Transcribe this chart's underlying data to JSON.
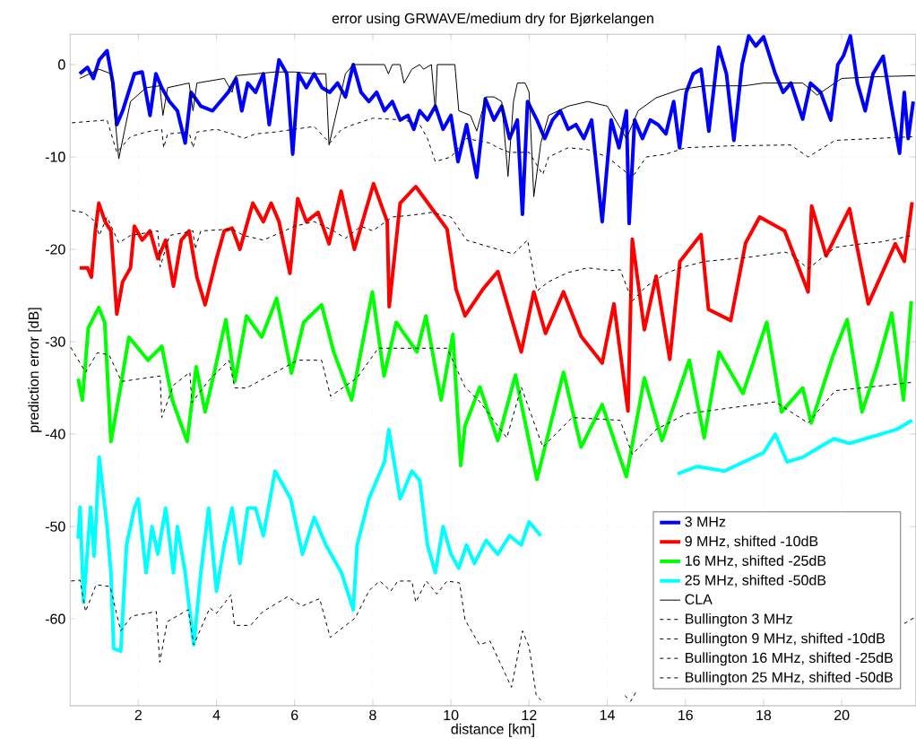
{
  "chart_data": {
    "type": "line",
    "title": "error using GRWAVE/medium dry for Bjørkelangen",
    "xlabel": "distance [km]",
    "ylabel": "prediction error [dB]",
    "xlim": [
      0.25,
      21.9
    ],
    "ylim": [
      -69.4,
      3.3
    ],
    "xticks": [
      2,
      4,
      6,
      8,
      10,
      12,
      14,
      16,
      18,
      20
    ],
    "yticks": [
      -60,
      -50,
      -40,
      -30,
      -20,
      -10,
      0
    ],
    "grid": true,
    "legend": "bottom right",
    "series": [
      {
        "name": "3 MHz",
        "color": "#0000ff",
        "line_style": "solid",
        "x": [
          0.5,
          0.7,
          0.85,
          1.0,
          1.2,
          1.35,
          1.45,
          1.6,
          1.75,
          1.9,
          2.1,
          2.3,
          2.45,
          2.6,
          2.8,
          3.0,
          3.2,
          3.35,
          3.6,
          3.9,
          4.1,
          4.3,
          4.5,
          4.65,
          4.8,
          5.0,
          5.2,
          5.35,
          5.6,
          5.8,
          5.95,
          6.1,
          6.3,
          6.5,
          6.7,
          6.9,
          7.1,
          7.3,
          7.5,
          7.7,
          7.9,
          8.1,
          8.3,
          8.5,
          8.7,
          8.9,
          9.05,
          9.2,
          9.4,
          9.6,
          9.8,
          10.0,
          10.18,
          10.4,
          10.66,
          10.88,
          11.1,
          11.3,
          11.5,
          11.7,
          11.83,
          11.96,
          12.2,
          12.4,
          12.6,
          12.8,
          13.0,
          13.2,
          13.4,
          13.6,
          13.87,
          14.1,
          14.3,
          14.49,
          14.56,
          14.7,
          14.9,
          15.1,
          15.3,
          15.5,
          15.7,
          15.85,
          16.02,
          16.2,
          16.4,
          16.6,
          16.85,
          17.05,
          17.24,
          17.45,
          17.62,
          17.8,
          18.0,
          18.15,
          18.3,
          18.5,
          18.7,
          19.0,
          19.2,
          19.46,
          19.72,
          19.9,
          20.05,
          20.22,
          20.4,
          20.6,
          20.8,
          21.06,
          21.25,
          21.48,
          21.6,
          21.7,
          21.83
        ],
        "values": [
          -1,
          -0.3,
          -1.5,
          0.5,
          1.5,
          -2,
          -6.5,
          -5,
          -3,
          -1,
          -0.8,
          -5.5,
          -1,
          -2.5,
          -4,
          -5,
          -8.5,
          -3,
          -4.5,
          -5,
          -4,
          -3,
          -1.5,
          -5,
          -2,
          -3,
          -1,
          -6.5,
          0.5,
          -1,
          -9.7,
          -1,
          -2.5,
          -1,
          -2.5,
          -3,
          -2,
          -3.5,
          0,
          -3,
          -4,
          -3,
          -5,
          -4,
          -6,
          -5.5,
          -7,
          -5,
          -6,
          -4.5,
          -7,
          -5.5,
          -10.5,
          -6.5,
          -12.2,
          -3.7,
          -6,
          -4.5,
          -8,
          -6,
          -16.2,
          -4,
          -6,
          -8,
          -6,
          -5,
          -7,
          -6.5,
          -8,
          -6,
          -17,
          -6,
          -9,
          -5,
          -17.2,
          -6,
          -8,
          -6,
          -6.5,
          -7.5,
          -4,
          -9,
          -3,
          -1,
          -0.5,
          -7.2,
          1.9,
          -1,
          -8.2,
          0,
          3.1,
          2,
          3.0,
          1,
          -1,
          -3,
          -2,
          -5.9,
          -2,
          -3,
          -6,
          0,
          1,
          3.1,
          -2,
          -5,
          -1,
          0.9,
          -4,
          -9.6,
          -3,
          -8,
          -4
        ]
      },
      {
        "name": "9 MHz,  shifted -10dB",
        "color": "#ff0000",
        "line_style": "solid",
        "x": [
          0.5,
          0.7,
          0.8,
          0.9,
          0.99,
          1.15,
          1.3,
          1.45,
          1.6,
          1.8,
          1.9,
          2.1,
          2.3,
          2.5,
          2.7,
          2.9,
          3.1,
          3.3,
          3.5,
          3.71,
          4.0,
          4.2,
          4.4,
          4.6,
          4.93,
          5.2,
          5.4,
          5.6,
          5.88,
          6.08,
          6.3,
          6.6,
          6.88,
          7.19,
          7.53,
          8.02,
          8.2,
          8.37,
          8.42,
          8.7,
          9.1,
          9.5,
          9.9,
          10.13,
          10.36,
          10.82,
          11.2,
          11.8,
          12.12,
          12.42,
          12.88,
          13.33,
          13.87,
          14.17,
          14.53,
          14.64,
          14.95,
          15.25,
          15.6,
          15.86,
          16.4,
          16.59,
          17.16,
          17.54,
          17.9,
          18.54,
          19.14,
          19.23,
          19.6,
          20.2,
          20.68,
          21.37,
          21.6,
          21.8
        ],
        "values": [
          -22,
          -22,
          -23,
          -18,
          -15,
          -17,
          -18,
          -27,
          -23.5,
          -22,
          -17.5,
          -19,
          -18,
          -21,
          -19,
          -24,
          -19,
          -18,
          -23,
          -26,
          -21,
          -18,
          -17.7,
          -20,
          -15,
          -17,
          -15,
          -17,
          -22.6,
          -14.5,
          -17,
          -16,
          -19.4,
          -13.7,
          -20,
          -12.9,
          -15,
          -17,
          -26.2,
          -15,
          -13.2,
          -15.5,
          -17.8,
          -24.3,
          -27.2,
          -24.3,
          -22.4,
          -31.1,
          -24.6,
          -29.1,
          -24.6,
          -29.4,
          -32.3,
          -25.9,
          -37.5,
          -18.9,
          -28.7,
          -22.9,
          -31.9,
          -21.3,
          -18.4,
          -26.5,
          -27.7,
          -19.3,
          -16.5,
          -18,
          -24.6,
          -15.3,
          -20.7,
          -15.6,
          -25.9,
          -19.4,
          -21.3,
          -14.9
        ]
      },
      {
        "name": "16 MHz, shifted -25dB",
        "color": "#00ff00",
        "line_style": "solid",
        "x": [
          0.46,
          0.57,
          0.72,
          0.99,
          1.14,
          1.3,
          1.53,
          1.76,
          2.25,
          2.6,
          2.87,
          3.25,
          3.48,
          3.71,
          3.94,
          4.24,
          4.47,
          4.77,
          5.16,
          5.54,
          5.92,
          6.23,
          6.69,
          7.0,
          7.46,
          7.99,
          8.29,
          8.6,
          9.13,
          9.36,
          9.75,
          10.05,
          10.25,
          10.36,
          10.74,
          11.2,
          11.65,
          12.2,
          12.88,
          13.33,
          13.87,
          14.49,
          14.95,
          15.4,
          16.1,
          16.48,
          16.86,
          17.47,
          18.08,
          18.46,
          19.0,
          19.22,
          19.76,
          20.14,
          20.52,
          20.9,
          21.28,
          21.58,
          21.78
        ],
        "values": [
          -34.0,
          -36.3,
          -28.5,
          -26.3,
          -27.9,
          -40.8,
          -35.3,
          -29.5,
          -32,
          -30.5,
          -36.3,
          -40.8,
          -32.7,
          -37.6,
          -33.4,
          -27.6,
          -34.3,
          -27.2,
          -29.5,
          -25.3,
          -33.4,
          -27.9,
          -26,
          -31.1,
          -36.3,
          -24.6,
          -33.7,
          -27.9,
          -31.1,
          -27.2,
          -36.3,
          -29.2,
          -43.4,
          -39.1,
          -34.9,
          -40.7,
          -33.6,
          -44.9,
          -33.3,
          -41.4,
          -36.8,
          -44.6,
          -33.9,
          -40.7,
          -32,
          -40.4,
          -31.1,
          -35.6,
          -27.9,
          -37.6,
          -35,
          -38.8,
          -31.7,
          -27.6,
          -37.6,
          -32.7,
          -26.9,
          -36.3,
          -25.6
        ]
      },
      {
        "name": "25 MHz, shifted -50dB",
        "color": "#00ffff",
        "line_style": "solid",
        "x": [
          0.46,
          0.51,
          0.6,
          0.78,
          0.87,
          1.0,
          1.2,
          1.3,
          1.37,
          1.55,
          1.7,
          1.9,
          2.0,
          2.2,
          2.35,
          2.5,
          2.7,
          2.9,
          3.0,
          3.2,
          3.42,
          3.6,
          3.8,
          4.0,
          4.2,
          4.4,
          4.6,
          4.8,
          5.0,
          5.2,
          5.5,
          5.9,
          6.2,
          6.5,
          6.8,
          7.2,
          7.5,
          7.6,
          7.9,
          8.3,
          8.41,
          8.7,
          9.0,
          9.2,
          9.4,
          9.6,
          9.8,
          10.0,
          10.2,
          10.4,
          10.6,
          10.9,
          11.2,
          11.5,
          11.8,
          12.0,
          12.3,
          13.0,
          15.8,
          16.3,
          17.0,
          17.5,
          18.0,
          18.3,
          18.6,
          19.0,
          19.4,
          19.8,
          20.2,
          20.6,
          21.0,
          21.4,
          21.8
        ],
        "values": [
          -51.3,
          -47.9,
          -58.2,
          -47.9,
          -53.2,
          -42.5,
          -50,
          -55,
          -63.2,
          -63.5,
          -52,
          -48,
          -47,
          -55,
          -50,
          -53,
          -48,
          -55,
          -50,
          -55,
          -62.8,
          -55,
          -48,
          -57,
          -52,
          -48,
          -54,
          -48,
          -48,
          -51,
          -44,
          -47,
          -53,
          -49,
          -52,
          -55,
          -59,
          -52,
          -47,
          -43,
          -39.5,
          -47,
          -44,
          -45,
          -52,
          -55,
          -50,
          -53,
          -54.5,
          -52,
          -54,
          -51.5,
          -53,
          -51,
          -52,
          -49.5,
          -51,
          null,
          -44.3,
          -43.5,
          -44,
          -43,
          -42,
          -40,
          -43,
          -42.5,
          -41.5,
          -40.5,
          -41,
          -40.5,
          -40,
          -39.5,
          -38.5
        ]
      },
      {
        "name": "CLA",
        "color": "#000000",
        "line_style": "solid",
        "x": [
          0.5,
          1.0,
          1.3,
          1.5,
          1.8,
          2.2,
          2.55,
          2.63,
          2.75,
          3.3,
          3.4,
          3.5,
          4.2,
          4.4,
          4.5,
          5.0,
          5.5,
          6.0,
          6.5,
          6.8,
          6.88,
          7.3,
          7.5,
          8.0,
          8.3,
          8.4,
          8.5,
          8.7,
          8.8,
          9.0,
          9.2,
          9.3,
          9.5,
          9.6,
          9.65,
          10.0,
          10.1,
          10.2,
          10.5,
          10.66,
          10.9,
          11.1,
          11.3,
          11.46,
          11.6,
          11.7,
          11.9,
          12.0,
          12.12,
          12.3,
          12.5,
          13.0,
          13.5,
          14.0,
          14.49,
          14.79,
          15.25,
          15.86,
          16.5,
          17.5,
          18.0,
          19.0,
          19.37,
          20.0,
          21.0,
          21.88
        ],
        "values": [
          -1.5,
          -0.5,
          -1,
          -10.2,
          -4,
          -2.5,
          -2.3,
          -5.5,
          -2.5,
          -2,
          -5,
          -2,
          -1.5,
          -3,
          -1.2,
          -1,
          -0.8,
          -0.8,
          -1,
          -1,
          -8.7,
          -1,
          0,
          0,
          0,
          -1,
          0,
          0,
          -2,
          -0.5,
          0,
          -0.5,
          0,
          -5,
          0,
          0,
          0,
          -5,
          -5.5,
          -7.2,
          -3.5,
          -3.5,
          -4,
          -12.1,
          -4,
          -2,
          -2,
          -3,
          -14.3,
          -8.5,
          -5.5,
          -4.5,
          -4,
          -4.5,
          -8,
          -5,
          -3.6,
          -2.7,
          -2.3,
          -2.3,
          -2,
          -2,
          -3.3,
          -1.5,
          -1.3,
          -1.2
        ]
      },
      {
        "name": "Bullington 3 MHz",
        "color": "#000000",
        "line_style": "dashed",
        "x": [
          0.3,
          1.2,
          1.45,
          1.8,
          2.2,
          2.6,
          2.65,
          2.75,
          3.3,
          3.4,
          3.5,
          4.0,
          4.4,
          4.7,
          5.0,
          5.5,
          6.0,
          6.5,
          6.9,
          7.2,
          7.5,
          8.0,
          8.8,
          9.2,
          9.4,
          9.6,
          10.0,
          10.4,
          11.0,
          11.2,
          11.5,
          12.0,
          12.35,
          12.5,
          13.0,
          13.5,
          14.0,
          14.64,
          15.0,
          15.5,
          16.0,
          17.16,
          18.69,
          19.14,
          19.83,
          21.88
        ],
        "values": [
          -6.3,
          -6,
          -9.5,
          -7.8,
          -7.3,
          -7,
          -9,
          -7.5,
          -7.3,
          -9,
          -7.3,
          -7,
          -7.5,
          -8,
          -7.5,
          -7.3,
          -7,
          -6.7,
          -8.5,
          -7,
          -6.5,
          -5.8,
          -6,
          -6.5,
          -8,
          -10.5,
          -10,
          -8,
          -8.5,
          -9,
          -9.5,
          -9.5,
          -11.9,
          -10,
          -9,
          -9.2,
          -10,
          -12.2,
          -10,
          -9.7,
          -9,
          -8.8,
          -8.7,
          -10,
          -8.2,
          -7.8
        ]
      },
      {
        "name": "Bullington 9 MHz,  shifted -10dB",
        "color": "#000000",
        "line_style": "dashed",
        "x": [
          0.3,
          0.6,
          0.9,
          1.0,
          1.2,
          1.5,
          1.8,
          2.5,
          2.56,
          2.8,
          3.4,
          3.45,
          3.6,
          4.4,
          4.7,
          5.2,
          6.0,
          6.5,
          7.0,
          7.3,
          7.7,
          8.0,
          8.5,
          9.0,
          9.5,
          10.0,
          10.4,
          10.8,
          11.2,
          11.6,
          11.96,
          12.2,
          12.5,
          13.0,
          13.5,
          14.1,
          14.33,
          14.64,
          15.0,
          15.5,
          15.86,
          16.5,
          17.54,
          18.54,
          18.7,
          19.14,
          19.83,
          20.5,
          21.0,
          21.8
        ],
        "values": [
          -15.8,
          -16,
          -17,
          -18.5,
          -16.5,
          -19.3,
          -18.5,
          -18,
          -21.9,
          -18.5,
          -18,
          -20,
          -18,
          -17.8,
          -18.5,
          -19,
          -17.5,
          -17,
          -18,
          -18.8,
          -17.5,
          -18,
          -16.5,
          -16.3,
          -16,
          -16.5,
          -19,
          -19.5,
          -20,
          -20.5,
          -19,
          -24.5,
          -23.5,
          -22.5,
          -22,
          -22.3,
          -22.2,
          -25.6,
          -24,
          -22.6,
          -22,
          -21.3,
          -20.9,
          -20.3,
          -20.5,
          -22.1,
          -19.8,
          -19.4,
          -19.2,
          -18.5
        ]
      },
      {
        "name": "Bullington 16 MHz,  shifted -25dB",
        "color": "#000000",
        "line_style": "dashed",
        "x": [
          0.27,
          0.65,
          0.95,
          1.25,
          1.57,
          2.56,
          2.6,
          2.9,
          3.32,
          3.37,
          3.78,
          4.32,
          4.47,
          4.77,
          6.08,
          6.69,
          6.92,
          7.6,
          8.14,
          9.9,
          10.36,
          10.74,
          11.43,
          11.8,
          12.35,
          13.1,
          14.33,
          14.64,
          15.25,
          16.02,
          18.3,
          19.14,
          19.83,
          21.8
        ],
        "values": [
          -30.6,
          -33.3,
          -31.2,
          -31.4,
          -34.3,
          -33.7,
          -38.2,
          -34.7,
          -33.3,
          -36.6,
          -34.3,
          -32,
          -35,
          -35,
          -32,
          -32,
          -35.9,
          -33.9,
          -30.7,
          -30.7,
          -34.9,
          -36.5,
          -40.4,
          -34.9,
          -41.4,
          -38.2,
          -38.5,
          -42.2,
          -39.5,
          -37.8,
          -36.5,
          -38.8,
          -35.3,
          -34.4
        ]
      },
      {
        "name": "Bullington 25 MHz,  shifted -50dB",
        "color": "#000000",
        "line_style": "dashed",
        "x": [
          0.28,
          0.51,
          0.65,
          0.92,
          1.28,
          1.55,
          1.83,
          2.46,
          2.55,
          2.74,
          3.28,
          3.42,
          3.83,
          4.0,
          4.37,
          4.46,
          4.87,
          5.19,
          5.82,
          6.19,
          6.64,
          6.91,
          7.55,
          7.91,
          8.18,
          8.46,
          8.64,
          9.0,
          9.1,
          9.37,
          9.64,
          9.9,
          10.22,
          10.36,
          10.73,
          11.0,
          11.55,
          11.83,
          12.0,
          12.18,
          12.3,
          13.0,
          14.45,
          14.6,
          14.75,
          18.0,
          21.6,
          21.88
        ],
        "values": [
          -55.9,
          -55.8,
          -59.2,
          -56.3,
          -56.5,
          -61.3,
          -59.7,
          -59.2,
          -64.7,
          -60.3,
          -59,
          -62.8,
          -58.8,
          -59.4,
          -57.4,
          -60.7,
          -60.7,
          -59.2,
          -57.6,
          -58.6,
          -57.8,
          -62,
          -59.9,
          -56.9,
          -55.9,
          -57,
          -55.9,
          -55.9,
          -58.2,
          -55.9,
          -57.3,
          -55.9,
          -56.1,
          -60.1,
          -62.8,
          -62.4,
          -67.4,
          -61.3,
          -63,
          -68.2,
          -68.8,
          null,
          -68.3,
          -68.9,
          -67.8,
          null,
          -60.5,
          -59.8
        ]
      }
    ]
  }
}
